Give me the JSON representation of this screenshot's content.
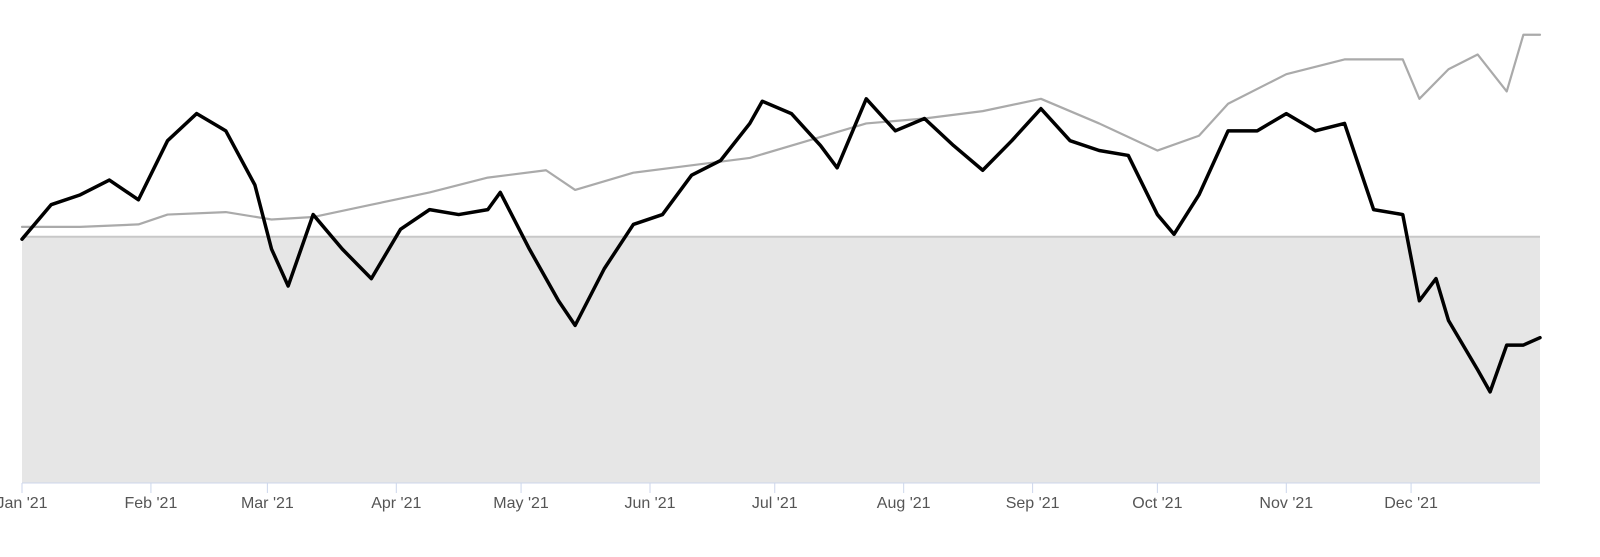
{
  "chart_data": {
    "type": "line",
    "xlim": [
      0,
      365
    ],
    "xticks": [
      {
        "value": 0,
        "label": "Jan '21"
      },
      {
        "value": 31,
        "label": "Feb '21"
      },
      {
        "value": 59,
        "label": "Mar '21"
      },
      {
        "value": 90,
        "label": "Apr '21"
      },
      {
        "value": 120,
        "label": "May '21"
      },
      {
        "value": 151,
        "label": "Jun '21"
      },
      {
        "value": 181,
        "label": "Jul '21"
      },
      {
        "value": 212,
        "label": "Aug '21"
      },
      {
        "value": 243,
        "label": "Sep '21"
      },
      {
        "value": 273,
        "label": "Oct '21"
      },
      {
        "value": 304,
        "label": "Nov '21"
      },
      {
        "value": 334,
        "label": "Dec '21"
      }
    ],
    "ylim": [
      -100,
      88
    ],
    "baseline": 0,
    "baseline_fill": "#e6e6e6",
    "series": [
      {
        "color": "#aaaaaa",
        "x": [
          0,
          14,
          28,
          35,
          49,
          60,
          70,
          84,
          98,
          112,
          126,
          133,
          147,
          161,
          175,
          189,
          203,
          217,
          231,
          245,
          259,
          273,
          283,
          290,
          304,
          318,
          332,
          336,
          343,
          350,
          357,
          361,
          365
        ],
        "values": [
          4,
          4,
          5,
          9,
          10,
          7,
          8,
          13,
          18,
          24,
          27,
          19,
          26,
          29,
          32,
          39,
          46,
          48,
          51,
          56,
          46,
          35,
          41,
          54,
          66,
          72,
          72,
          56,
          68,
          74,
          59,
          82,
          82
        ]
      },
      {
        "color": "#000000",
        "x": [
          0,
          7,
          14,
          21,
          28,
          35,
          42,
          49,
          56,
          60,
          64,
          70,
          77,
          84,
          91,
          98,
          105,
          112,
          115,
          122,
          129,
          133,
          140,
          147,
          154,
          161,
          168,
          175,
          178,
          185,
          192,
          196,
          203,
          210,
          217,
          224,
          231,
          238,
          245,
          252,
          259,
          266,
          273,
          277,
          283,
          290,
          297,
          304,
          311,
          318,
          325,
          332,
          336,
          340,
          343,
          350,
          353,
          357,
          361,
          365
        ],
        "values": [
          -1,
          13,
          17,
          23,
          15,
          39,
          50,
          43,
          21,
          -5,
          -20,
          9,
          -5,
          -17,
          3,
          11,
          9,
          11,
          18,
          -5,
          -26,
          -36,
          -13,
          5,
          9,
          25,
          31,
          46,
          55,
          50,
          37,
          28,
          56,
          43,
          48,
          37,
          27,
          39,
          52,
          39,
          35,
          33,
          9,
          1,
          17,
          43,
          43,
          50,
          43,
          46,
          11,
          9,
          -26,
          -17,
          -34,
          -54,
          -63,
          -44,
          -44,
          -41
        ]
      }
    ]
  }
}
